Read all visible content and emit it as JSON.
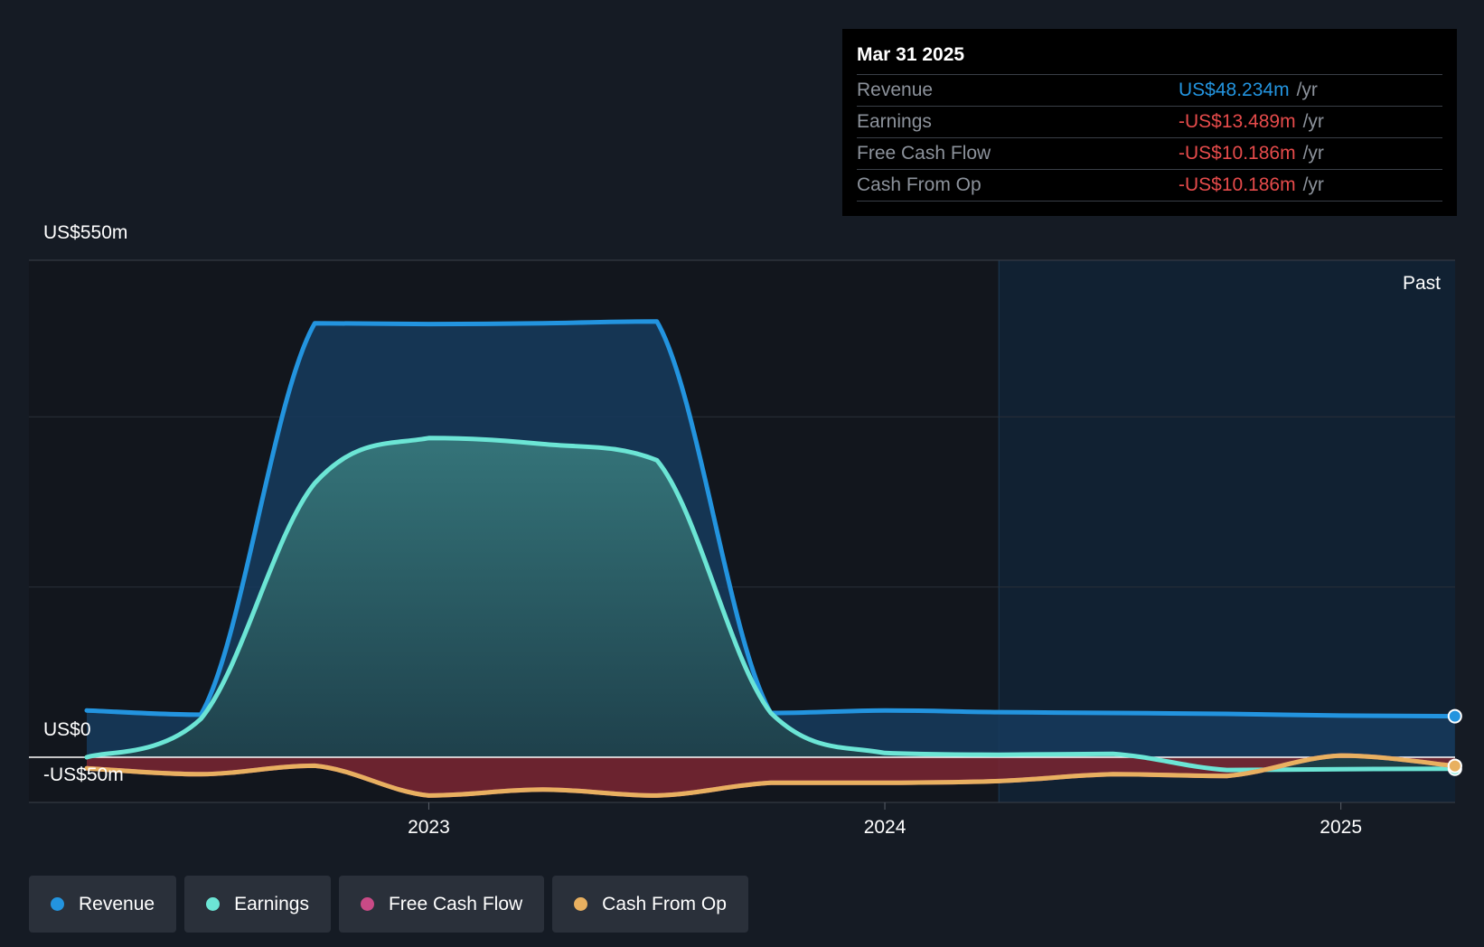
{
  "tooltip": {
    "date": "Mar 31 2025",
    "rows": [
      {
        "label": "Revenue",
        "value": "US$48.234m",
        "unit": "/yr",
        "color": "#2394df"
      },
      {
        "label": "Earnings",
        "value": "-US$13.489m",
        "unit": "/yr",
        "color": "#e64b4b"
      },
      {
        "label": "Free Cash Flow",
        "value": "-US$10.186m",
        "unit": "/yr",
        "color": "#e64b4b"
      },
      {
        "label": "Cash From Op",
        "value": "-US$10.186m",
        "unit": "/yr",
        "color": "#e64b4b"
      }
    ]
  },
  "past_label": "Past",
  "legend": [
    {
      "label": "Revenue",
      "color": "#2394df"
    },
    {
      "label": "Earnings",
      "color": "#6ce5d5"
    },
    {
      "label": "Free Cash Flow",
      "color": "#c94a86"
    },
    {
      "label": "Cash From Op",
      "color": "#e8b060"
    }
  ],
  "chart_data": {
    "type": "line",
    "y_tick_labels": [
      "US$550m",
      "US$0",
      "-US$50m"
    ],
    "x_tick_labels": [
      "2023",
      "2024",
      "2025"
    ],
    "x_ticks": [
      2023.0,
      2024.0,
      2025.0
    ],
    "xlim": [
      2022.12,
      2025.25
    ],
    "ylim": [
      -50,
      550
    ],
    "y_gridlines": [
      400,
      200
    ],
    "past_region_start": 2024.25,
    "series": [
      {
        "name": "Revenue",
        "color": "#2394df",
        "x": [
          2022.25,
          2022.5,
          2022.75,
          2023.0,
          2023.25,
          2023.5,
          2023.75,
          2024.0,
          2024.25,
          2024.5,
          2024.75,
          2025.0,
          2025.25
        ],
        "values": [
          55,
          50,
          510,
          509,
          510,
          512,
          52,
          55,
          53,
          52,
          51,
          49,
          48.234
        ]
      },
      {
        "name": "Earnings",
        "color": "#6ce5d5",
        "x": [
          2022.25,
          2022.5,
          2022.75,
          2023.0,
          2023.25,
          2023.5,
          2023.75,
          2024.0,
          2024.25,
          2024.5,
          2024.75,
          2025.0,
          2025.25
        ],
        "values": [
          0,
          45,
          322,
          375,
          368,
          349,
          52,
          5,
          3,
          4,
          -15,
          -14,
          -13.489
        ]
      },
      {
        "name": "Free Cash Flow",
        "color": "#c94a86",
        "x": [
          2022.25,
          2022.5,
          2022.75,
          2023.0,
          2023.25,
          2023.5,
          2023.75,
          2024.0,
          2024.25,
          2024.5,
          2024.75,
          2025.0,
          2025.25
        ],
        "values": [
          -13,
          -20,
          -10,
          -45,
          -38,
          -45,
          -30,
          -30,
          -28,
          -20,
          -22,
          2,
          -10.186
        ]
      },
      {
        "name": "Cash From Op",
        "color": "#e8b060",
        "x": [
          2022.25,
          2022.5,
          2022.75,
          2023.0,
          2023.25,
          2023.5,
          2023.75,
          2024.0,
          2024.25,
          2024.5,
          2024.75,
          2025.0,
          2025.25
        ],
        "values": [
          -13,
          -20,
          -10,
          -45,
          -38,
          -45,
          -30,
          -30,
          -28,
          -20,
          -22,
          2,
          -10.186
        ]
      }
    ]
  }
}
